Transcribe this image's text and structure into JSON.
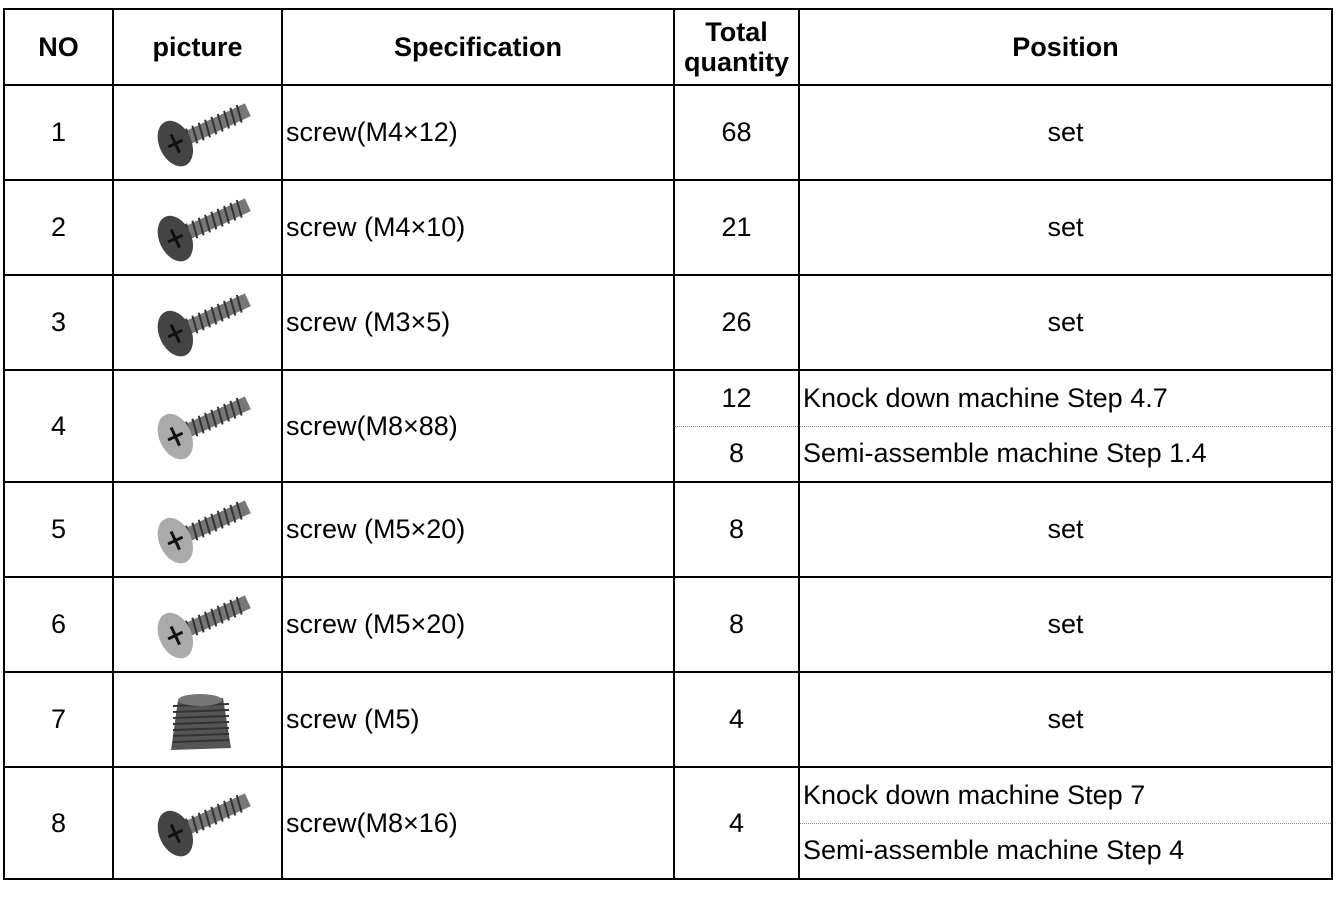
{
  "table": {
    "headers": [
      "NO",
      "picture",
      "Specification",
      "Total quantity",
      "Position"
    ],
    "rows": [
      {
        "no": 1,
        "spec": "screw(M4×12)",
        "quantity": [
          68
        ],
        "position": [
          "set"
        ]
      },
      {
        "no": 2,
        "spec": "screw (M4×10)",
        "quantity": [
          21
        ],
        "position": [
          "set"
        ]
      },
      {
        "no": 3,
        "spec": "screw (M3×5)",
        "quantity": [
          26
        ],
        "position": [
          "set"
        ]
      },
      {
        "no": 4,
        "spec": "screw(M8×88)",
        "quantity": [
          12,
          8
        ],
        "position": [
          "Knock down machine Step 4.7",
          "Semi-assemble machine Step 1.4"
        ]
      },
      {
        "no": 5,
        "spec": "screw (M5×20)",
        "quantity": [
          8
        ],
        "position": [
          "set"
        ]
      },
      {
        "no": 6,
        "spec": "screw (M5×20)",
        "quantity": [
          8
        ],
        "position": [
          "set"
        ]
      },
      {
        "no": 7,
        "spec": "screw (M5)",
        "quantity": [
          4
        ],
        "position": [
          "set"
        ]
      },
      {
        "no": 8,
        "spec": "screw(M8×16)",
        "quantity": [
          4
        ],
        "position": [
          "Knock down machine Step 7",
          "Semi-assemble machine Step 4"
        ]
      }
    ]
  }
}
